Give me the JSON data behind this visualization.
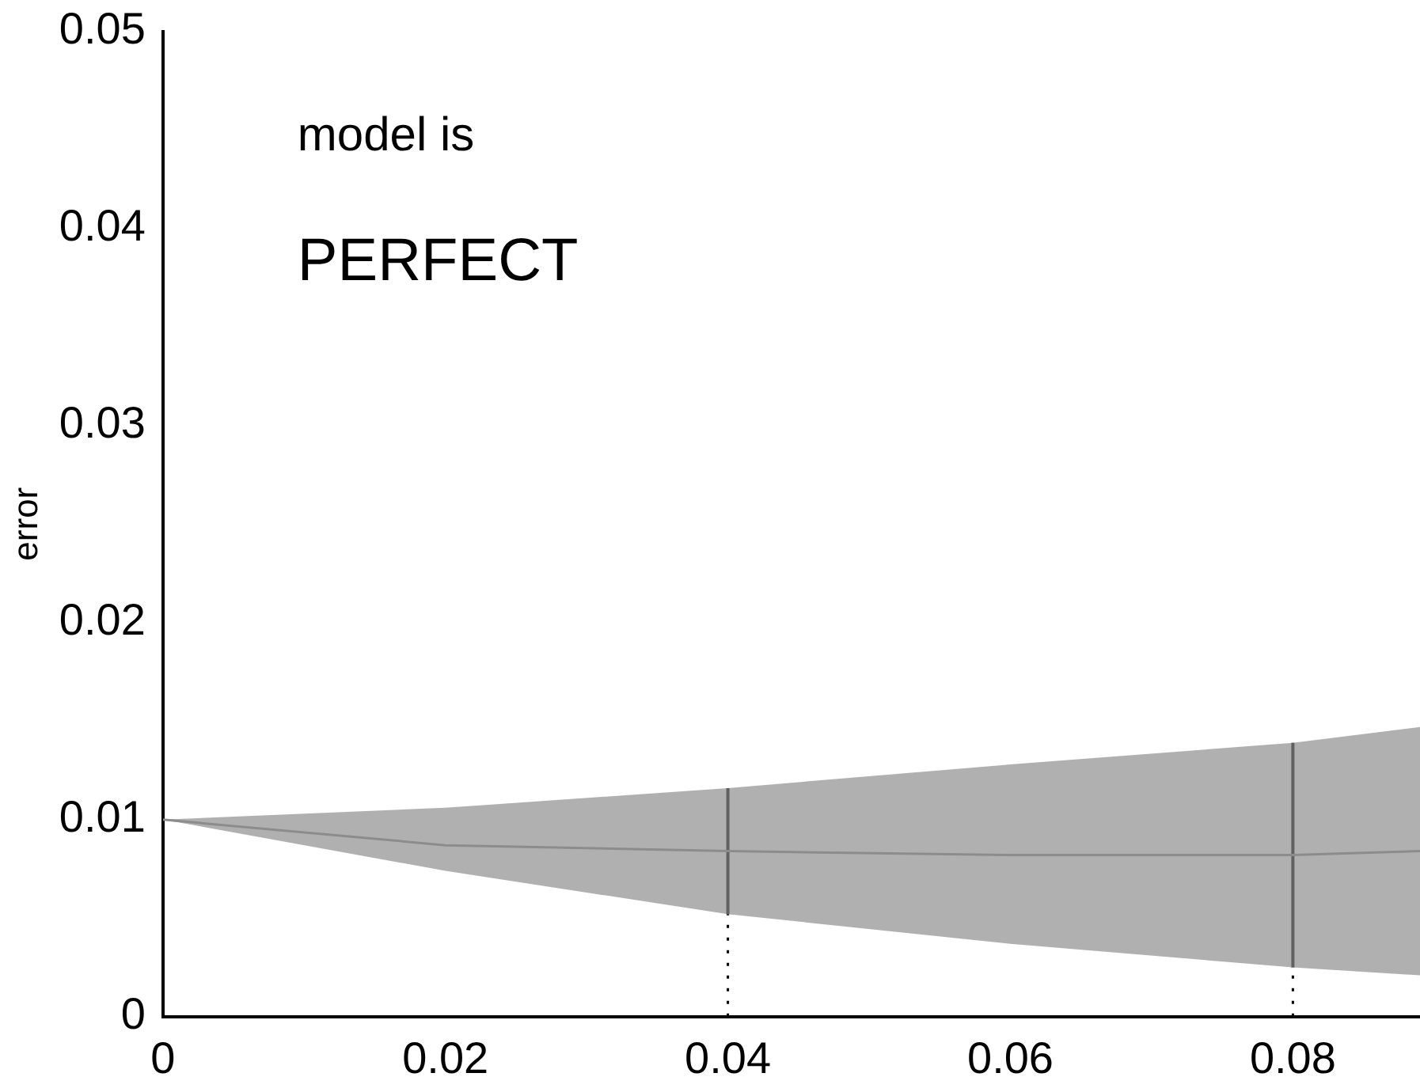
{
  "chart_data": {
    "type": "line",
    "ylabel": "error",
    "annotations": [
      "model is",
      "PERFECT"
    ],
    "xlim": [
      0,
      0.089
    ],
    "ylim": [
      0,
      0.05
    ],
    "xticks": [
      0,
      0.02,
      0.04,
      0.06,
      0.08
    ],
    "yticks": [
      0,
      0.01,
      0.02,
      0.03,
      0.04,
      0.05
    ],
    "grid": false,
    "legend": false,
    "series": [
      {
        "color": "#8c8c8c",
        "x": [
          0,
          0.02,
          0.04,
          0.06,
          0.08,
          0.089
        ],
        "values": [
          0.01,
          0.0087,
          0.0084,
          0.0082,
          0.0082,
          0.0084
        ],
        "lower": [
          0.01,
          0.0074,
          0.0052,
          0.0037,
          0.0025,
          0.0021
        ],
        "upper": [
          0.01,
          0.0106,
          0.0116,
          0.0128,
          0.0139,
          0.0147
        ]
      },
      {
        "type": "line",
        "color": "#000000",
        "line_style": "solid",
        "marker": "none",
        "x": [
          0.04,
          0.04
        ],
        "values": [
          0.0052,
          0.0116
        ]
      },
      {
        "type": "line",
        "color": "#000000",
        "line_style": "solid",
        "marker": "none",
        "x": [
          0.08,
          0.08
        ],
        "values": [
          0.0025,
          0.0139
        ]
      },
      {
        "type": "line",
        "color": "#000000",
        "line_style": "dotted",
        "marker": "none",
        "x": [
          0.04,
          0.04
        ],
        "values": [
          0,
          0.0052
        ]
      },
      {
        "type": "line",
        "color": "#000000",
        "line_style": "dotted",
        "marker": "none",
        "x": [
          0.08,
          0.08
        ],
        "values": [
          0,
          0.0025
        ]
      }
    ]
  }
}
